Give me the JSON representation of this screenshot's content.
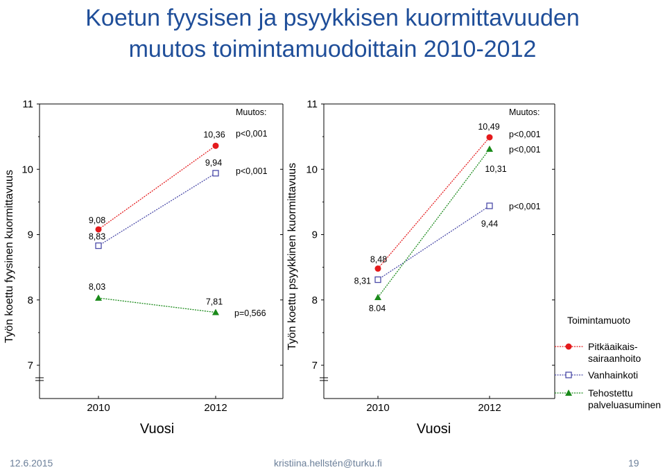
{
  "title_line1": "Koetun fyysisen ja psyykkisen kuormittavuuden",
  "title_line2": "muutos toimintamuodoittain 2010-2012",
  "footer": {
    "date": "12.6.2015",
    "email": "kristiina.hellstén@turku.fi",
    "page": "19"
  },
  "colors": {
    "Pitkäaikais-sairaanhoito": "#e41a1c",
    "Vanhainkoti": "#4a4aa8",
    "Tehostettu palveluasuminen": "#1a8a1a",
    "title": "#1f4e99"
  },
  "legend": {
    "title": "Toimintamuoto",
    "items": [
      {
        "lines": [
          "Pitkäaikais-",
          "sairaanhoito"
        ],
        "marker": "circle",
        "color": "#e41a1c"
      },
      {
        "lines": [
          "Vanhainkoti"
        ],
        "marker": "square",
        "color": "#4a4aa8"
      },
      {
        "lines": [
          "Tehostettu",
          "palveluasuminen"
        ],
        "marker": "triangle",
        "color": "#1a8a1a"
      }
    ]
  },
  "chart_data": [
    {
      "type": "line",
      "ylabel": "Työn koettu fyysinen kuormittavuus",
      "xlabel": "Vuosi",
      "categories": [
        "2010",
        "2012"
      ],
      "ylim": [
        7,
        11
      ],
      "yticks": [
        "7",
        "8",
        "9",
        "10",
        "11"
      ],
      "muutos_label": "Muutos:",
      "series": [
        {
          "name": "Pitkäaikais-sairaanhoito",
          "marker": "circle",
          "color": "#e41a1c",
          "values": [
            9.08,
            10.36
          ],
          "labels": [
            "9,08",
            "10,36"
          ],
          "p": "p<0,001"
        },
        {
          "name": "Vanhainkoti",
          "marker": "square",
          "color": "#4a4aa8",
          "values": [
            8.83,
            9.94
          ],
          "labels": [
            "8,83",
            "9,94"
          ],
          "p": "p<0,001"
        },
        {
          "name": "Tehostettu palveluasuminen",
          "marker": "triangle",
          "color": "#1a8a1a",
          "values": [
            8.03,
            7.81
          ],
          "labels": [
            "8,03",
            "7,81"
          ],
          "p": "p=0,566"
        }
      ]
    },
    {
      "type": "line",
      "ylabel": "Työn koettu psyykkinen kuormittavuus",
      "xlabel": "Vuosi",
      "categories": [
        "2010",
        "2012"
      ],
      "ylim": [
        7,
        11
      ],
      "yticks": [
        "7",
        "8",
        "9",
        "10",
        "11"
      ],
      "muutos_label": "Muutos:",
      "series": [
        {
          "name": "Pitkäaikais-sairaanhoito",
          "marker": "circle",
          "color": "#e41a1c",
          "values": [
            8.48,
            10.49
          ],
          "labels": [
            "8,48",
            "10,49"
          ],
          "p": "p<0,001"
        },
        {
          "name": "Vanhainkoti",
          "marker": "square",
          "color": "#4a4aa8",
          "values": [
            8.31,
            9.44
          ],
          "labels": [
            "8,31",
            "9,44"
          ],
          "p": "p<0,001"
        },
        {
          "name": "Tehostettu palveluasuminen",
          "marker": "triangle",
          "color": "#1a8a1a",
          "values": [
            8.04,
            10.31
          ],
          "labels": [
            "8.04",
            "10,31"
          ],
          "p": "p<0,001"
        }
      ]
    }
  ]
}
